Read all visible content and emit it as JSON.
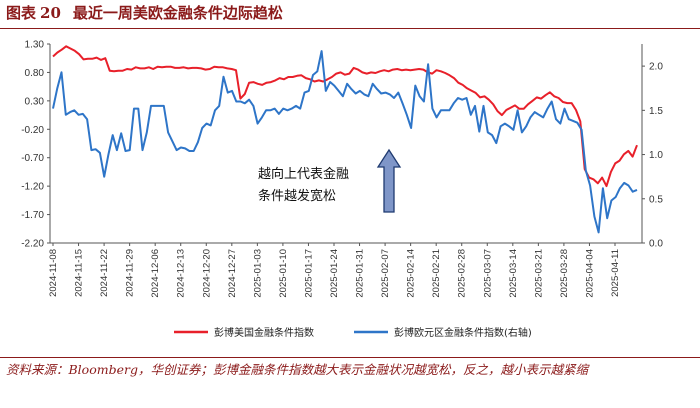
{
  "figure": {
    "label": "图表",
    "number": "20",
    "title": "最近一周美欧金融条件边际趋松"
  },
  "note": "资料来源：Bloomberg，华创证券；彭博金融条件指数越大表示金融状况越宽松，反之，越小表示越紧缩",
  "colors": {
    "us": "#E8202A",
    "eu": "#2E75C8",
    "accent": "#8B1A1A",
    "arrow": "#7F96C8"
  },
  "chart_data": {
    "type": "line",
    "x_ticks": [
      "2024-11-08",
      "2024-11-15",
      "2024-11-22",
      "2024-11-29",
      "2024-12-06",
      "2024-12-13",
      "2024-12-20",
      "2024-12-27",
      "2025-01-03",
      "2025-01-10",
      "2025-01-17",
      "2025-01-24",
      "2025-01-31",
      "2025-02-07",
      "2025-02-14",
      "2025-02-21",
      "2025-02-28",
      "2025-03-07",
      "2025-03-14",
      "2025-03-21",
      "2025-03-28",
      "2025-04-04",
      "2025-04-11"
    ],
    "y_left": {
      "ticks": [
        "1.30",
        "0.80",
        "0.30",
        "-0.20",
        "-0.70",
        "-1.20",
        "-1.70",
        "-2.20"
      ],
      "range": [
        -2.2,
        1.3
      ]
    },
    "y_right": {
      "ticks": [
        "2.0",
        "1.5",
        "1.0",
        "0.5",
        "0.0"
      ],
      "range": [
        0,
        2.25
      ]
    },
    "annotation": [
      "越向上代表金融",
      "条件越发宽松"
    ],
    "series": [
      {
        "name": "彭博美国金融条件指数",
        "axis": "left",
        "values": [
          1.08,
          1.15,
          1.2,
          1.26,
          1.22,
          1.18,
          1.12,
          1.03,
          1.04,
          1.04,
          1.06,
          1.02,
          1.05,
          0.83,
          0.82,
          0.83,
          0.83,
          0.86,
          0.85,
          0.89,
          0.87,
          0.87,
          0.89,
          0.86,
          0.9,
          0.89,
          0.9,
          0.9,
          0.88,
          0.88,
          0.89,
          0.87,
          0.88,
          0.88,
          0.87,
          0.85,
          0.86,
          0.9,
          0.89,
          0.89,
          0.87,
          0.86,
          0.84,
          0.34,
          0.42,
          0.62,
          0.63,
          0.6,
          0.58,
          0.62,
          0.63,
          0.66,
          0.7,
          0.68,
          0.72,
          0.72,
          0.74,
          0.75,
          0.7,
          0.68,
          0.64,
          0.66,
          0.64,
          0.68,
          0.72,
          0.78,
          0.8,
          0.76,
          0.78,
          0.88,
          0.85,
          0.8,
          0.78,
          0.8,
          0.79,
          0.82,
          0.84,
          0.82,
          0.85,
          0.86,
          0.84,
          0.85,
          0.84,
          0.85,
          0.86,
          0.85,
          0.8,
          0.78,
          0.84,
          0.82,
          0.79,
          0.75,
          0.7,
          0.62,
          0.58,
          0.52,
          0.48,
          0.44,
          0.36,
          0.38,
          0.32,
          0.24,
          0.12,
          0.05,
          0.14,
          0.18,
          0.22,
          0.16,
          0.16,
          0.24,
          0.3,
          0.36,
          0.34,
          0.4,
          0.45,
          0.38,
          0.35,
          0.28,
          0.26,
          0.26,
          0.14,
          -0.06,
          -0.9,
          -1.05,
          -1.08,
          -1.15,
          -1.05,
          -1.2,
          -0.95,
          -0.8,
          -0.75,
          -0.64,
          -0.58,
          -0.68,
          -0.48
        ]
      },
      {
        "name": "彭博欧元区金融条件指数(右轴)",
        "axis": "right",
        "values": [
          1.52,
          1.75,
          1.93,
          1.45,
          1.48,
          1.5,
          1.45,
          1.46,
          1.4,
          1.05,
          1.06,
          1.02,
          0.75,
          1.0,
          1.22,
          1.05,
          1.24,
          1.04,
          1.05,
          1.52,
          1.52,
          1.05,
          1.25,
          1.55,
          1.55,
          1.55,
          1.55,
          1.25,
          1.15,
          1.05,
          1.08,
          1.07,
          1.04,
          1.04,
          1.14,
          1.3,
          1.35,
          1.33,
          1.5,
          1.55,
          1.88,
          1.7,
          1.72,
          1.6,
          1.6,
          1.58,
          1.62,
          1.55,
          1.35,
          1.42,
          1.5,
          1.5,
          1.52,
          1.46,
          1.52,
          1.5,
          1.52,
          1.55,
          1.52,
          1.7,
          1.72,
          1.9,
          1.94,
          2.17,
          1.72,
          1.82,
          1.78,
          1.72,
          1.66,
          1.8,
          1.74,
          1.69,
          1.72,
          1.68,
          1.66,
          1.8,
          1.74,
          1.69,
          1.7,
          1.68,
          1.64,
          1.7,
          1.58,
          1.45,
          1.3,
          1.78,
          1.66,
          1.6,
          2.02,
          1.52,
          1.42,
          1.5,
          1.5,
          1.5,
          1.58,
          1.64,
          1.62,
          1.64,
          1.45,
          1.55,
          1.26,
          1.55,
          1.25,
          1.22,
          1.13,
          1.32,
          1.35,
          1.32,
          1.28,
          1.5,
          1.25,
          1.32,
          1.42,
          1.48,
          1.45,
          1.42,
          1.52,
          1.6,
          1.4,
          1.35,
          1.52,
          1.4,
          1.38,
          1.36,
          1.28,
          0.82,
          0.65,
          0.3,
          0.12,
          0.62,
          0.28,
          0.48,
          0.52,
          0.62,
          0.68,
          0.65,
          0.58,
          0.6
        ]
      }
    ]
  }
}
